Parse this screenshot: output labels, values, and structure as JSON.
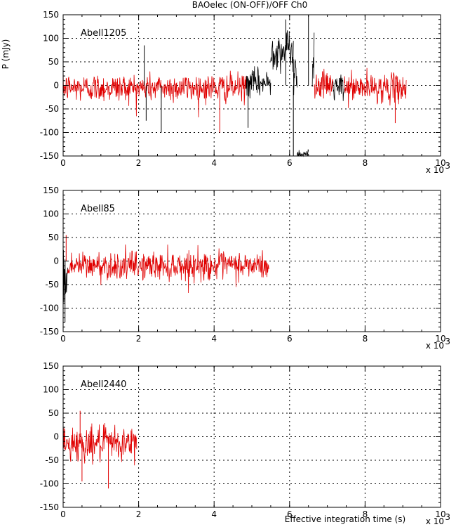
{
  "figure": {
    "title": "BAOelec (ON-OFF)/OFF Ch0",
    "ylabel": "P (mJy)",
    "xlabel": "Effective integration time (s)",
    "exponent_label": "x 10",
    "exponent_power": "3"
  },
  "colors": {
    "on_target": "#e00000",
    "off_target": "#000000",
    "grid": "#000000",
    "axes": "#000000"
  },
  "chart_data": [
    {
      "type": "line",
      "label": "Abell1205",
      "xlim": [
        0,
        10
      ],
      "ylim": [
        -150,
        150
      ],
      "x_unit_multiplier": 1000,
      "xticks": [
        0,
        2,
        4,
        6,
        8,
        10
      ],
      "yticks": [
        -150,
        -100,
        -50,
        0,
        50,
        100,
        150
      ],
      "grid": true,
      "segments": [
        {
          "color": "red",
          "x_start": 0.0,
          "x_end": 4.85,
          "mean": -5,
          "noise": 15
        },
        {
          "color": "black",
          "x_start": 4.85,
          "x_end": 5.5,
          "mean": 5,
          "noise": 15
        },
        {
          "color": "black",
          "x_start": 5.5,
          "x_end": 6.1,
          "mean": 75,
          "noise": 20
        },
        {
          "color": "black",
          "x_start": 6.1,
          "x_end": 6.2,
          "mean": 20,
          "noise": 30
        },
        {
          "color": "black",
          "x_start": 6.2,
          "x_end": 6.5,
          "mean": -145,
          "noise": 5
        },
        {
          "color": "black",
          "x_start": 6.5,
          "x_end": 6.6,
          "mean": 150,
          "noise": 0
        },
        {
          "color": "black",
          "x_start": 6.6,
          "x_end": 6.65,
          "mean": 60,
          "noise": 30
        },
        {
          "color": "red",
          "x_start": 6.65,
          "x_end": 7.15,
          "mean": 0,
          "noise": 15
        },
        {
          "color": "black",
          "x_start": 7.15,
          "x_end": 7.45,
          "mean": -5,
          "noise": 15
        },
        {
          "color": "red",
          "x_start": 7.45,
          "x_end": 9.1,
          "mean": -5,
          "noise": 15
        }
      ],
      "spikes": [
        {
          "x": 2.15,
          "y": 85,
          "color": "black"
        },
        {
          "x": 2.2,
          "y": -75,
          "color": "black"
        },
        {
          "x": 2.6,
          "y": -100,
          "color": "black"
        },
        {
          "x": 4.15,
          "y": -100,
          "color": "red"
        },
        {
          "x": 4.9,
          "y": -90,
          "color": "black"
        },
        {
          "x": 5.9,
          "y": 140,
          "color": "black"
        },
        {
          "x": 6.1,
          "y": -150,
          "color": "black"
        },
        {
          "x": 6.5,
          "y": 150,
          "color": "black"
        },
        {
          "x": 8.8,
          "y": -80,
          "color": "red"
        }
      ]
    },
    {
      "type": "line",
      "label": "Abell85",
      "xlim": [
        0,
        10
      ],
      "ylim": [
        -150,
        150
      ],
      "x_unit_multiplier": 1000,
      "xticks": [
        0,
        2,
        4,
        6,
        8,
        10
      ],
      "yticks": [
        -150,
        -100,
        -50,
        0,
        50,
        100,
        150
      ],
      "grid": true,
      "segments": [
        {
          "color": "black",
          "x_start": 0.0,
          "x_end": 0.12,
          "mean": -40,
          "noise": 30
        },
        {
          "color": "red",
          "x_start": 0.12,
          "x_end": 5.45,
          "mean": -10,
          "noise": 15
        }
      ],
      "spikes": [
        {
          "x": 0.05,
          "y": -130,
          "color": "black"
        },
        {
          "x": 0.08,
          "y": 55,
          "color": "red"
        }
      ]
    },
    {
      "type": "line",
      "label": "Abell2440",
      "xlim": [
        0,
        10
      ],
      "ylim": [
        -150,
        150
      ],
      "x_unit_multiplier": 1000,
      "xticks": [
        0,
        2,
        4,
        6,
        8,
        10
      ],
      "yticks": [
        -150,
        -100,
        -50,
        0,
        50,
        100,
        150
      ],
      "grid": true,
      "segments": [
        {
          "color": "red",
          "x_start": 0.0,
          "x_end": 1.95,
          "mean": -15,
          "noise": 18
        }
      ],
      "spikes": [
        {
          "x": 0.5,
          "y": -95,
          "color": "red"
        },
        {
          "x": 1.2,
          "y": -110,
          "color": "red"
        },
        {
          "x": 0.45,
          "y": 55,
          "color": "red"
        }
      ]
    }
  ]
}
